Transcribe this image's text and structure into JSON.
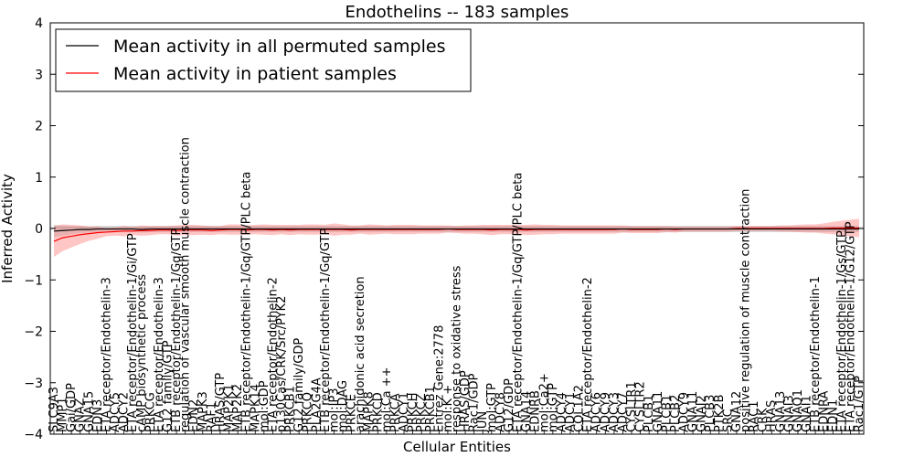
{
  "chart_data": {
    "type": "line",
    "title": "Endothelins -- 183 samples",
    "xlabel": "Cellular Entities",
    "ylabel": "Inferred Activity",
    "ylim": [
      -4,
      4
    ],
    "yticks": [
      4,
      3,
      2,
      1,
      0,
      -1,
      -2,
      -3,
      -4
    ],
    "ytick_labels": [
      "4",
      "3",
      "2",
      "1",
      "0",
      "−1",
      "−2",
      "−3",
      "−4"
    ],
    "legend_position": "top-left",
    "colors": {
      "permuted": "#000000",
      "patient": "#ff0000",
      "patient_band": "#ff8080",
      "permuted_band": "#bdbdbd"
    },
    "categories": [
      "SLC9A3",
      "MMP1",
      "Gai/GDP",
      "GNAZ",
      "GNA15",
      "EDN3",
      "ETA receptor/Endothelin-3",
      "ADCY5",
      "ADCY2",
      "ETA receptor/Endothelin-1/Gi/GTP",
      "cAMP biosynthetic process",
      "PRKCG",
      "ETA receptor/Endothelin-3",
      "G12 family/GTP",
      "ETB receptor/Endothelin-1/Gq/GTP",
      "regulation of vascular smooth muscle contraction",
      "EDN2",
      "MAPK3",
      "RAF1",
      "HRAS/GTP",
      "MAP2K1",
      "MAP2K2",
      "ETB receptor/Endothelin-1/Gq/GTP/PLC beta",
      "MAPK14",
      "mol:GDP",
      "ETA receptor/Endothelin-2",
      "p130Cas/CRK/Src/PYK2",
      "PRKCB1",
      "G12 family/GDP",
      "PRKCQ",
      "PLA2G4A",
      "ETB receptor/Endothelin-1/Gq/GTP",
      "mol:IP3",
      "mol:DAG",
      "PRKCE",
      "arachidonic acid secretion",
      "MAPK8",
      "PRKCD",
      "mol:Ca ++",
      "PRKCA",
      "ADCY1",
      "PRKCH",
      "PRKCZ",
      "PRKCB1",
      "Entrez Gene:2778",
      "mol:K +",
      "response to oxidative stress",
      "HRAS/GDP",
      "Rac1/GDP",
      "JUN",
      "mol:GTP",
      "ADCY8",
      "G12/GDP",
      "ETA receptor/Endothelin-1/Gq/GTP/PLC beta",
      "GNA14",
      "EDNRB",
      "mol:Ca2+",
      "mol:GTP",
      "ADCY4",
      "ADCY1",
      "COL1A2",
      "ETA receptor/Endothelin-2",
      "ADCY6",
      "ADCY9",
      "ADCY3",
      "ADCY7",
      "CYSLTR1",
      "CYSLTR2",
      "PLCB1",
      "GNA11",
      "PLCB1",
      "PLCB2",
      "ADCY9",
      "GNA11",
      "GNAI2",
      "PLCB3",
      "PTK2B",
      "SRC",
      "GNA12",
      "positive regulation of muscle contraction",
      "RAC1",
      "CRK",
      "HRAS",
      "GNA13",
      "GNAI3",
      "GNAO1",
      "GNAI1",
      "ETB receptor/Endothelin-1",
      "EDNRA",
      "EDN1",
      "ETA receptor/Endothelin-1/Gs/GTP",
      "ETA receptor/Endothelin-1/G12/GTP",
      "Rac1/GTP"
    ],
    "series": [
      {
        "name": "Mean activity in all permuted samples",
        "values": [
          -0.05,
          -0.04,
          -0.03,
          -0.02,
          -0.02,
          -0.01,
          -0.01,
          -0.01,
          -0.01,
          -0.01,
          -0.02,
          -0.01,
          -0.01,
          -0.01,
          -0.01,
          -0.01,
          -0.01,
          -0.01,
          -0.01,
          -0.01,
          -0.01,
          -0.01,
          -0.01,
          -0.01,
          -0.01,
          -0.01,
          -0.01,
          -0.01,
          -0.01,
          -0.01,
          -0.01,
          -0.01,
          -0.01,
          -0.01,
          -0.01,
          -0.01,
          -0.01,
          -0.01,
          -0.01,
          -0.01,
          -0.01,
          -0.01,
          -0.01,
          -0.01,
          -0.01,
          -0.01,
          -0.01,
          -0.01,
          -0.01,
          -0.01,
          -0.01,
          -0.01,
          -0.01,
          -0.01,
          -0.01,
          -0.01,
          -0.01,
          -0.01,
          -0.01,
          -0.01,
          -0.01,
          -0.01,
          -0.01,
          -0.01,
          -0.01,
          -0.01,
          -0.01,
          -0.01,
          -0.01,
          -0.01,
          -0.01,
          -0.01,
          -0.01,
          -0.01,
          -0.01,
          -0.01,
          -0.01,
          -0.01,
          -0.01,
          -0.01,
          -0.01,
          -0.01,
          -0.01,
          -0.01,
          -0.01,
          -0.01,
          -0.01,
          -0.01,
          -0.01,
          -0.01,
          -0.01,
          -0.01,
          -0.01
        ],
        "band": [
          0.12,
          0.1,
          0.08,
          0.07,
          0.06,
          0.06,
          0.06,
          0.06,
          0.06,
          0.06,
          0.06,
          0.06,
          0.06,
          0.06,
          0.06,
          0.06,
          0.06,
          0.06,
          0.06,
          0.06,
          0.06,
          0.06,
          0.06,
          0.06,
          0.06,
          0.06,
          0.06,
          0.06,
          0.06,
          0.06,
          0.06,
          0.06,
          0.06,
          0.06,
          0.06,
          0.06,
          0.06,
          0.06,
          0.06,
          0.06,
          0.06,
          0.06,
          0.06,
          0.06,
          0.06,
          0.06,
          0.06,
          0.06,
          0.06,
          0.06,
          0.06,
          0.06,
          0.06,
          0.06,
          0.06,
          0.06,
          0.06,
          0.06,
          0.06,
          0.06,
          0.06,
          0.06,
          0.06,
          0.06,
          0.06,
          0.06,
          0.06,
          0.06,
          0.06,
          0.06,
          0.06,
          0.06,
          0.06,
          0.06,
          0.06,
          0.06,
          0.06,
          0.06,
          0.06,
          0.06,
          0.06,
          0.06,
          0.06,
          0.06,
          0.06,
          0.06,
          0.06,
          0.06,
          0.06,
          0.06,
          0.06,
          0.06,
          0.06
        ]
      },
      {
        "name": "Mean activity in patient samples",
        "values": [
          -0.25,
          -0.18,
          -0.15,
          -0.12,
          -0.1,
          -0.08,
          -0.07,
          -0.06,
          -0.05,
          -0.05,
          -0.04,
          -0.04,
          -0.03,
          -0.03,
          -0.04,
          -0.03,
          -0.03,
          -0.03,
          -0.04,
          -0.03,
          -0.02,
          -0.02,
          -0.03,
          -0.02,
          -0.02,
          -0.03,
          -0.02,
          -0.03,
          -0.02,
          -0.02,
          -0.02,
          -0.02,
          -0.02,
          -0.02,
          -0.03,
          -0.02,
          -0.02,
          -0.02,
          -0.02,
          -0.02,
          -0.02,
          -0.02,
          -0.02,
          -0.02,
          -0.02,
          -0.01,
          -0.02,
          -0.02,
          -0.02,
          -0.02,
          -0.03,
          -0.02,
          -0.02,
          -0.02,
          -0.03,
          -0.02,
          -0.02,
          -0.02,
          -0.02,
          -0.02,
          -0.02,
          -0.02,
          -0.02,
          -0.02,
          -0.02,
          -0.01,
          -0.02,
          -0.02,
          -0.02,
          -0.02,
          -0.01,
          -0.02,
          -0.01,
          -0.01,
          -0.01,
          -0.01,
          -0.01,
          -0.01,
          0.0,
          0.0,
          0.0,
          0.0,
          0.0,
          0.0,
          0.0,
          0.0,
          0.0,
          0.0,
          0.0,
          0.01,
          0.01,
          0.01,
          0.01
        ],
        "band": [
          0.3,
          0.26,
          0.22,
          0.18,
          0.14,
          0.12,
          0.08,
          0.08,
          0.1,
          0.08,
          0.1,
          0.09,
          0.08,
          0.08,
          0.1,
          0.1,
          0.1,
          0.09,
          0.09,
          0.08,
          0.1,
          0.1,
          0.09,
          0.09,
          0.1,
          0.1,
          0.09,
          0.1,
          0.09,
          0.1,
          0.1,
          0.09,
          0.12,
          0.1,
          0.09,
          0.08,
          0.1,
          0.09,
          0.08,
          0.09,
          0.09,
          0.09,
          0.08,
          0.08,
          0.08,
          0.07,
          0.07,
          0.08,
          0.08,
          0.09,
          0.1,
          0.09,
          0.09,
          0.09,
          0.1,
          0.1,
          0.09,
          0.09,
          0.08,
          0.08,
          0.08,
          0.08,
          0.08,
          0.08,
          0.08,
          0.07,
          0.07,
          0.07,
          0.07,
          0.07,
          0.06,
          0.06,
          0.05,
          0.05,
          0.05,
          0.05,
          0.05,
          0.05,
          0.05,
          0.05,
          0.05,
          0.05,
          0.05,
          0.06,
          0.06,
          0.07,
          0.08,
          0.08,
          0.1,
          0.12,
          0.14,
          0.16,
          0.18
        ]
      }
    ]
  }
}
